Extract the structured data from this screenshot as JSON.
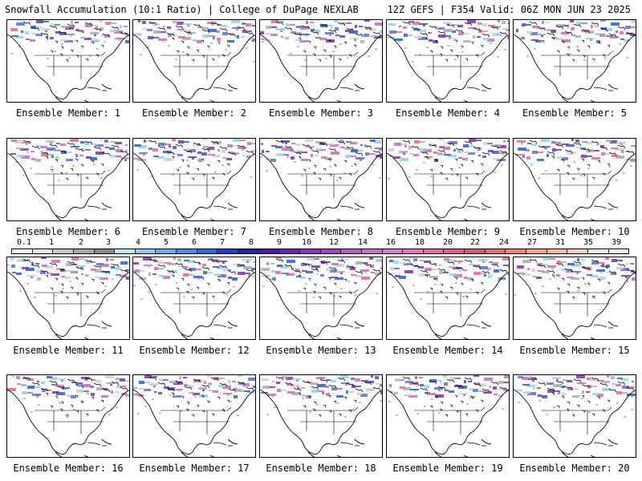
{
  "header": {
    "title": "Snowfall Accumulation (10:1 Ratio) | College of DuPage NEXLAB",
    "run_info": "12Z GEFS | F354 Valid: 06Z MON JUN 23 2025"
  },
  "panels": [
    {
      "label": "Ensemble Member: 1"
    },
    {
      "label": "Ensemble Member: 2"
    },
    {
      "label": "Ensemble Member: 3"
    },
    {
      "label": "Ensemble Member: 4"
    },
    {
      "label": "Ensemble Member: 5"
    },
    {
      "label": "Ensemble Member: 6"
    },
    {
      "label": "Ensemble Member: 7"
    },
    {
      "label": "Ensemble Member: 8"
    },
    {
      "label": "Ensemble Member: 9"
    },
    {
      "label": "Ensemble Member: 10"
    },
    {
      "label": "Ensemble Member: 11"
    },
    {
      "label": "Ensemble Member: 12"
    },
    {
      "label": "Ensemble Member: 13"
    },
    {
      "label": "Ensemble Member: 14"
    },
    {
      "label": "Ensemble Member: 15"
    },
    {
      "label": "Ensemble Member: 16"
    },
    {
      "label": "Ensemble Member: 17"
    },
    {
      "label": "Ensemble Member: 18"
    },
    {
      "label": "Ensemble Member: 19"
    },
    {
      "label": "Ensemble Member: 20"
    }
  ],
  "colorbar": {
    "labels": [
      "0.1",
      "1",
      "2",
      "3",
      "4",
      "5",
      "6",
      "7",
      "8",
      "9",
      "10",
      "12",
      "14",
      "16",
      "18",
      "20",
      "22",
      "24",
      "27",
      "31",
      "35",
      "39"
    ],
    "colors": [
      "#ffffff",
      "#e6e6e6",
      "#c8c8c8",
      "#a8a8a8",
      "#8a8a8a",
      "#bfe8f7",
      "#98c8f0",
      "#74a8e8",
      "#5088e0",
      "#3068d8",
      "#1e3fd0",
      "#2a1fa8",
      "#4a1fa0",
      "#6a2aa8",
      "#8a3ab0",
      "#a048b8",
      "#b860c0",
      "#cc70c8",
      "#d880c8",
      "#e07ab8",
      "#e070a0",
      "#d86090",
      "#d85878",
      "#e07068",
      "#e88878",
      "#f0a090",
      "#f4b8a8",
      "#f8d0c0",
      "#fbe4d8",
      "#fdf0e8"
    ]
  }
}
